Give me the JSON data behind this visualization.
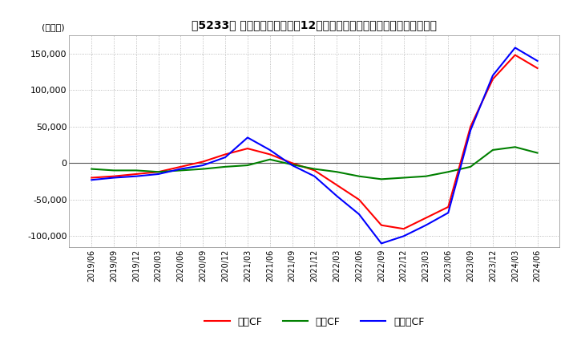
{
  "title": "【5233】 キャッシュフローの12か月移動合計の対前年同期増減額の推移",
  "ylabel": "(百万円)",
  "ylim": [
    -115000,
    175000
  ],
  "yticks": [
    -100000,
    -50000,
    0,
    50000,
    100000,
    150000
  ],
  "background_color": "#ffffff",
  "grid_color": "#aaaaaa",
  "x_labels": [
    "2019/06",
    "2019/09",
    "2019/12",
    "2020/03",
    "2020/06",
    "2020/09",
    "2020/12",
    "2021/03",
    "2021/06",
    "2021/09",
    "2021/12",
    "2022/03",
    "2022/06",
    "2022/09",
    "2022/12",
    "2023/03",
    "2023/06",
    "2023/09",
    "2023/12",
    "2024/03",
    "2024/06"
  ],
  "operating_cf": [
    -20000,
    -18000,
    -15000,
    -12000,
    -5000,
    2000,
    12000,
    20000,
    12000,
    0,
    -10000,
    -30000,
    -50000,
    -85000,
    -90000,
    -75000,
    -60000,
    50000,
    115000,
    148000,
    130000
  ],
  "investing_cf": [
    -8000,
    -10000,
    -10000,
    -12000,
    -10000,
    -8000,
    -5000,
    -3000,
    5000,
    -2000,
    -8000,
    -12000,
    -18000,
    -22000,
    -20000,
    -18000,
    -12000,
    -5000,
    18000,
    22000,
    14000
  ],
  "free_cf": [
    -23000,
    -20000,
    -18000,
    -15000,
    -8000,
    -3000,
    8000,
    35000,
    18000,
    -3000,
    -18000,
    -45000,
    -70000,
    -110000,
    -100000,
    -85000,
    -68000,
    45000,
    120000,
    158000,
    140000
  ],
  "operating_color": "#ff0000",
  "investing_color": "#008000",
  "free_color": "#0000ff",
  "line_width": 1.5,
  "legend_labels": [
    "営業CF",
    "投資CF",
    "フリーCF"
  ]
}
